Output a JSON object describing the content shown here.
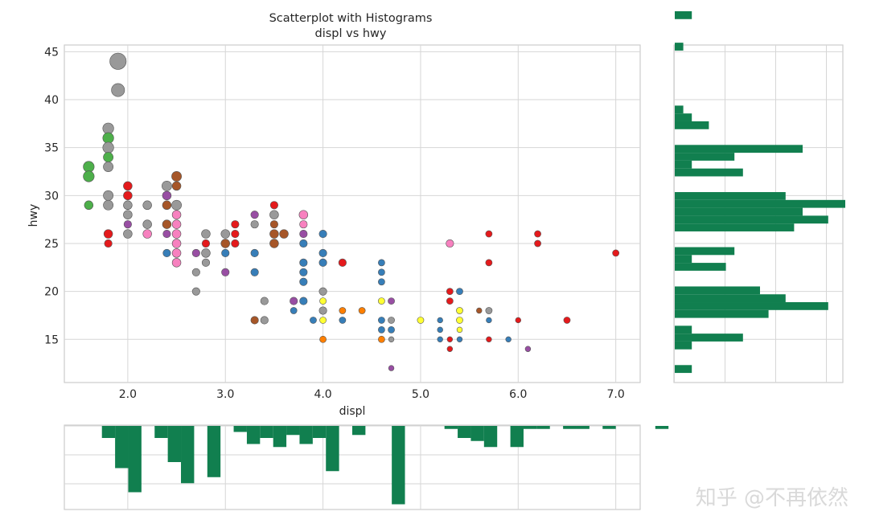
{
  "chart_data": {
    "type": "scatter",
    "title": "Scatterplot with Histograms",
    "subtitle": "displ vs hwy",
    "xlabel": "displ",
    "ylabel": "hwy",
    "xlim": [
      1.35,
      7.25
    ],
    "ylim": [
      10.5,
      45.7
    ],
    "xticks": [
      2.0,
      3.0,
      4.0,
      5.0,
      6.0,
      7.0
    ],
    "xtick_labels": [
      "2.0",
      "3.0",
      "4.0",
      "5.0",
      "6.0",
      "7.0"
    ],
    "yticks": [
      15,
      20,
      25,
      30,
      35,
      40,
      45
    ],
    "ytick_labels": [
      "15",
      "20",
      "25",
      "30",
      "35",
      "40",
      "45"
    ],
    "grid": true,
    "histogram_color": "#117f4f",
    "points": [
      {
        "x": 1.9,
        "y": 44,
        "c": "#999999",
        "s": 15
      },
      {
        "x": 1.9,
        "y": 41,
        "c": "#999999",
        "s": 12
      },
      {
        "x": 1.8,
        "y": 37,
        "c": "#999999",
        "s": 10
      },
      {
        "x": 1.8,
        "y": 36,
        "c": "#4daf4a",
        "s": 10
      },
      {
        "x": 1.8,
        "y": 35,
        "c": "#999999",
        "s": 10
      },
      {
        "x": 1.8,
        "y": 34,
        "c": "#4daf4a",
        "s": 9
      },
      {
        "x": 1.8,
        "y": 33,
        "c": "#999999",
        "s": 9
      },
      {
        "x": 1.6,
        "y": 33,
        "c": "#4daf4a",
        "s": 10
      },
      {
        "x": 1.6,
        "y": 32,
        "c": "#4daf4a",
        "s": 10
      },
      {
        "x": 1.6,
        "y": 29,
        "c": "#4daf4a",
        "s": 8
      },
      {
        "x": 1.8,
        "y": 30,
        "c": "#999999",
        "s": 9
      },
      {
        "x": 1.8,
        "y": 29,
        "c": "#999999",
        "s": 9
      },
      {
        "x": 1.8,
        "y": 26,
        "c": "#e41a1c",
        "s": 8
      },
      {
        "x": 1.8,
        "y": 25,
        "c": "#e41a1c",
        "s": 7
      },
      {
        "x": 2.0,
        "y": 31,
        "c": "#e41a1c",
        "s": 8
      },
      {
        "x": 2.0,
        "y": 30,
        "c": "#e41a1c",
        "s": 8
      },
      {
        "x": 2.0,
        "y": 29,
        "c": "#999999",
        "s": 8
      },
      {
        "x": 2.0,
        "y": 28,
        "c": "#999999",
        "s": 8
      },
      {
        "x": 2.0,
        "y": 27,
        "c": "#984ea3",
        "s": 7
      },
      {
        "x": 2.0,
        "y": 26,
        "c": "#999999",
        "s": 8
      },
      {
        "x": 2.2,
        "y": 29,
        "c": "#999999",
        "s": 8
      },
      {
        "x": 2.2,
        "y": 27,
        "c": "#999999",
        "s": 8
      },
      {
        "x": 2.2,
        "y": 26,
        "c": "#f781bf",
        "s": 8
      },
      {
        "x": 2.4,
        "y": 31,
        "c": "#999999",
        "s": 9
      },
      {
        "x": 2.4,
        "y": 30,
        "c": "#984ea3",
        "s": 8
      },
      {
        "x": 2.4,
        "y": 29,
        "c": "#a65628",
        "s": 8
      },
      {
        "x": 2.4,
        "y": 27,
        "c": "#a65628",
        "s": 8
      },
      {
        "x": 2.4,
        "y": 26,
        "c": "#984ea3",
        "s": 7
      },
      {
        "x": 2.4,
        "y": 24,
        "c": "#377eb8",
        "s": 7
      },
      {
        "x": 2.5,
        "y": 32,
        "c": "#a65628",
        "s": 9
      },
      {
        "x": 2.5,
        "y": 31,
        "c": "#a65628",
        "s": 8
      },
      {
        "x": 2.5,
        "y": 29,
        "c": "#999999",
        "s": 9
      },
      {
        "x": 2.5,
        "y": 28,
        "c": "#f781bf",
        "s": 8
      },
      {
        "x": 2.5,
        "y": 27,
        "c": "#f781bf",
        "s": 8
      },
      {
        "x": 2.5,
        "y": 26,
        "c": "#f781bf",
        "s": 8
      },
      {
        "x": 2.5,
        "y": 25,
        "c": "#f781bf",
        "s": 8
      },
      {
        "x": 2.5,
        "y": 24,
        "c": "#f781bf",
        "s": 8
      },
      {
        "x": 2.5,
        "y": 23,
        "c": "#f781bf",
        "s": 8
      },
      {
        "x": 2.7,
        "y": 24,
        "c": "#984ea3",
        "s": 7
      },
      {
        "x": 2.7,
        "y": 22,
        "c": "#999999",
        "s": 7
      },
      {
        "x": 2.7,
        "y": 20,
        "c": "#999999",
        "s": 7
      },
      {
        "x": 2.8,
        "y": 26,
        "c": "#999999",
        "s": 8
      },
      {
        "x": 2.8,
        "y": 25,
        "c": "#e41a1c",
        "s": 7
      },
      {
        "x": 2.8,
        "y": 24,
        "c": "#999999",
        "s": 8
      },
      {
        "x": 2.8,
        "y": 23,
        "c": "#999999",
        "s": 7
      },
      {
        "x": 3.0,
        "y": 26,
        "c": "#999999",
        "s": 8
      },
      {
        "x": 3.0,
        "y": 25,
        "c": "#a65628",
        "s": 8
      },
      {
        "x": 3.0,
        "y": 24,
        "c": "#377eb8",
        "s": 7
      },
      {
        "x": 3.0,
        "y": 22,
        "c": "#984ea3",
        "s": 7
      },
      {
        "x": 3.1,
        "y": 27,
        "c": "#e41a1c",
        "s": 7
      },
      {
        "x": 3.1,
        "y": 26,
        "c": "#e41a1c",
        "s": 7
      },
      {
        "x": 3.1,
        "y": 25,
        "c": "#e41a1c",
        "s": 7
      },
      {
        "x": 3.3,
        "y": 28,
        "c": "#984ea3",
        "s": 7
      },
      {
        "x": 3.3,
        "y": 27,
        "c": "#999999",
        "s": 7
      },
      {
        "x": 3.3,
        "y": 24,
        "c": "#377eb8",
        "s": 7
      },
      {
        "x": 3.3,
        "y": 22,
        "c": "#377eb8",
        "s": 7
      },
      {
        "x": 3.3,
        "y": 17,
        "c": "#a65628",
        "s": 7
      },
      {
        "x": 3.4,
        "y": 19,
        "c": "#999999",
        "s": 7
      },
      {
        "x": 3.4,
        "y": 17,
        "c": "#999999",
        "s": 7
      },
      {
        "x": 3.5,
        "y": 29,
        "c": "#e41a1c",
        "s": 7
      },
      {
        "x": 3.5,
        "y": 28,
        "c": "#999999",
        "s": 8
      },
      {
        "x": 3.5,
        "y": 27,
        "c": "#a65628",
        "s": 7
      },
      {
        "x": 3.5,
        "y": 26,
        "c": "#a65628",
        "s": 8
      },
      {
        "x": 3.5,
        "y": 25,
        "c": "#a65628",
        "s": 8
      },
      {
        "x": 3.6,
        "y": 26,
        "c": "#a65628",
        "s": 8
      },
      {
        "x": 3.7,
        "y": 19,
        "c": "#984ea3",
        "s": 7
      },
      {
        "x": 3.7,
        "y": 18,
        "c": "#377eb8",
        "s": 6
      },
      {
        "x": 3.8,
        "y": 28,
        "c": "#f781bf",
        "s": 8
      },
      {
        "x": 3.8,
        "y": 27,
        "c": "#f781bf",
        "s": 7
      },
      {
        "x": 3.8,
        "y": 26,
        "c": "#984ea3",
        "s": 7
      },
      {
        "x": 3.8,
        "y": 25,
        "c": "#377eb8",
        "s": 7
      },
      {
        "x": 3.8,
        "y": 23,
        "c": "#377eb8",
        "s": 7
      },
      {
        "x": 3.8,
        "y": 22,
        "c": "#377eb8",
        "s": 7
      },
      {
        "x": 3.8,
        "y": 21,
        "c": "#377eb8",
        "s": 7
      },
      {
        "x": 3.8,
        "y": 19,
        "c": "#377eb8",
        "s": 7
      },
      {
        "x": 3.9,
        "y": 17,
        "c": "#377eb8",
        "s": 6
      },
      {
        "x": 4.0,
        "y": 26,
        "c": "#377eb8",
        "s": 7
      },
      {
        "x": 4.0,
        "y": 24,
        "c": "#377eb8",
        "s": 7
      },
      {
        "x": 4.0,
        "y": 23,
        "c": "#377eb8",
        "s": 7
      },
      {
        "x": 4.0,
        "y": 20,
        "c": "#999999",
        "s": 7
      },
      {
        "x": 4.0,
        "y": 19,
        "c": "#ffff33",
        "s": 6
      },
      {
        "x": 4.0,
        "y": 18,
        "c": "#999999",
        "s": 7
      },
      {
        "x": 4.0,
        "y": 17,
        "c": "#ffff33",
        "s": 6
      },
      {
        "x": 4.0,
        "y": 15,
        "c": "#ff7f00",
        "s": 6
      },
      {
        "x": 4.2,
        "y": 23,
        "c": "#e41a1c",
        "s": 7
      },
      {
        "x": 4.2,
        "y": 18,
        "c": "#ff7f00",
        "s": 6
      },
      {
        "x": 4.2,
        "y": 17,
        "c": "#377eb8",
        "s": 6
      },
      {
        "x": 4.4,
        "y": 18,
        "c": "#ff7f00",
        "s": 6
      },
      {
        "x": 4.6,
        "y": 23,
        "c": "#377eb8",
        "s": 6
      },
      {
        "x": 4.6,
        "y": 22,
        "c": "#377eb8",
        "s": 6
      },
      {
        "x": 4.6,
        "y": 21,
        "c": "#377eb8",
        "s": 6
      },
      {
        "x": 4.6,
        "y": 19,
        "c": "#ffff33",
        "s": 6
      },
      {
        "x": 4.6,
        "y": 17,
        "c": "#377eb8",
        "s": 6
      },
      {
        "x": 4.6,
        "y": 16,
        "c": "#377eb8",
        "s": 6
      },
      {
        "x": 4.6,
        "y": 15,
        "c": "#ff7f00",
        "s": 6
      },
      {
        "x": 4.7,
        "y": 19,
        "c": "#984ea3",
        "s": 6
      },
      {
        "x": 4.7,
        "y": 17,
        "c": "#999999",
        "s": 6
      },
      {
        "x": 4.7,
        "y": 16,
        "c": "#377eb8",
        "s": 6
      },
      {
        "x": 4.7,
        "y": 15,
        "c": "#999999",
        "s": 5
      },
      {
        "x": 4.7,
        "y": 12,
        "c": "#984ea3",
        "s": 5
      },
      {
        "x": 5.0,
        "y": 17,
        "c": "#ffff33",
        "s": 6
      },
      {
        "x": 5.2,
        "y": 17,
        "c": "#377eb8",
        "s": 5
      },
      {
        "x": 5.2,
        "y": 16,
        "c": "#377eb8",
        "s": 5
      },
      {
        "x": 5.2,
        "y": 15,
        "c": "#377eb8",
        "s": 5
      },
      {
        "x": 5.3,
        "y": 25,
        "c": "#f781bf",
        "s": 7
      },
      {
        "x": 5.3,
        "y": 20,
        "c": "#e41a1c",
        "s": 6
      },
      {
        "x": 5.3,
        "y": 19,
        "c": "#e41a1c",
        "s": 6
      },
      {
        "x": 5.3,
        "y": 15,
        "c": "#e41a1c",
        "s": 5
      },
      {
        "x": 5.3,
        "y": 14,
        "c": "#e41a1c",
        "s": 5
      },
      {
        "x": 5.4,
        "y": 20,
        "c": "#377eb8",
        "s": 6
      },
      {
        "x": 5.4,
        "y": 18,
        "c": "#ffff33",
        "s": 6
      },
      {
        "x": 5.4,
        "y": 17,
        "c": "#ffff33",
        "s": 6
      },
      {
        "x": 5.4,
        "y": 16,
        "c": "#ffff33",
        "s": 5
      },
      {
        "x": 5.4,
        "y": 15,
        "c": "#377eb8",
        "s": 5
      },
      {
        "x": 5.6,
        "y": 18,
        "c": "#a65628",
        "s": 5
      },
      {
        "x": 5.7,
        "y": 26,
        "c": "#e41a1c",
        "s": 6
      },
      {
        "x": 5.7,
        "y": 23,
        "c": "#e41a1c",
        "s": 6
      },
      {
        "x": 5.7,
        "y": 18,
        "c": "#999999",
        "s": 6
      },
      {
        "x": 5.7,
        "y": 17,
        "c": "#377eb8",
        "s": 5
      },
      {
        "x": 5.7,
        "y": 15,
        "c": "#e41a1c",
        "s": 5
      },
      {
        "x": 5.9,
        "y": 15,
        "c": "#377eb8",
        "s": 5
      },
      {
        "x": 6.0,
        "y": 17,
        "c": "#e41a1c",
        "s": 5
      },
      {
        "x": 6.1,
        "y": 14,
        "c": "#984ea3",
        "s": 5
      },
      {
        "x": 6.2,
        "y": 26,
        "c": "#e41a1c",
        "s": 6
      },
      {
        "x": 6.2,
        "y": 25,
        "c": "#e41a1c",
        "s": 6
      },
      {
        "x": 6.5,
        "y": 17,
        "c": "#e41a1c",
        "s": 6
      },
      {
        "x": 7.0,
        "y": 24,
        "c": "#e41a1c",
        "s": 6
      }
    ],
    "hist_x": {
      "orientation": "vertical-inverted",
      "bin_start": 1.6,
      "bin_width": 0.135,
      "counts": [
        0,
        4,
        14,
        22,
        0,
        4,
        12,
        19,
        0,
        17,
        0,
        2,
        6,
        4,
        7,
        3,
        6,
        4,
        15,
        0,
        3,
        0,
        0,
        26,
        0,
        0,
        0,
        1,
        4,
        5,
        7,
        0,
        7,
        1,
        1,
        0,
        1,
        1,
        0,
        1,
        0,
        0,
        0,
        1,
        0
      ]
    },
    "hist_y": {
      "orientation": "horizontal",
      "bin_start": 11.5,
      "bin_width": 0.82,
      "counts": [
        2,
        0,
        0,
        2,
        8,
        2,
        0,
        11,
        18,
        13,
        10,
        0,
        0,
        6,
        2,
        7,
        0,
        0,
        14,
        18,
        15,
        20,
        13,
        0,
        0,
        8,
        2,
        7,
        15,
        0,
        0,
        4,
        2,
        1,
        0,
        0,
        0,
        0,
        0,
        0,
        0,
        1,
        0,
        0,
        0,
        2
      ]
    }
  },
  "watermark": "知乎 @不再依然"
}
